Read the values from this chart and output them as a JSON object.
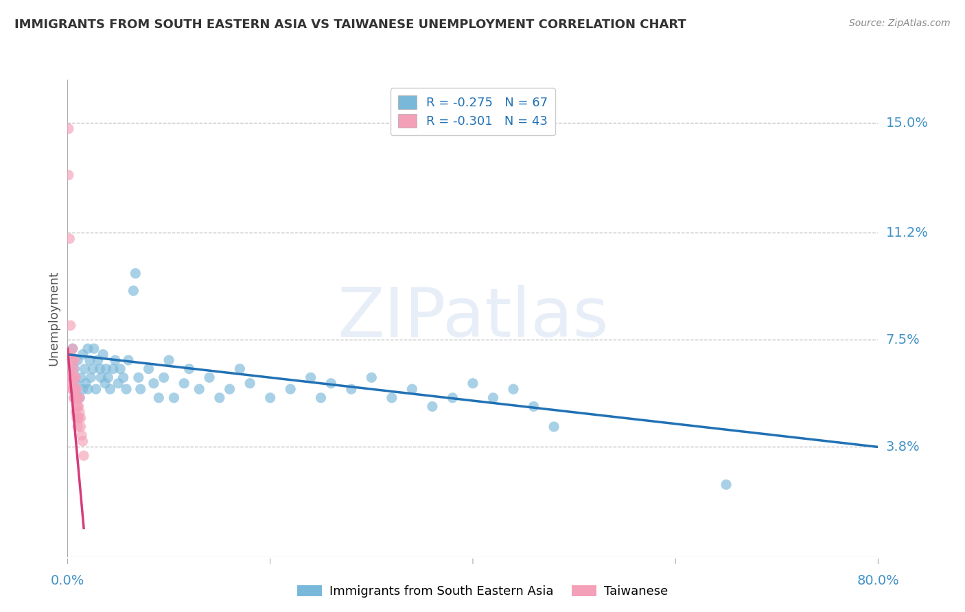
{
  "title": "IMMIGRANTS FROM SOUTH EASTERN ASIA VS TAIWANESE UNEMPLOYMENT CORRELATION CHART",
  "source": "Source: ZipAtlas.com",
  "ylabel": "Unemployment",
  "x_min": 0.0,
  "x_max": 0.8,
  "y_min": 0.0,
  "y_max": 0.165,
  "y_ticks": [
    0.038,
    0.075,
    0.112,
    0.15
  ],
  "y_tick_labels": [
    "3.8%",
    "7.5%",
    "11.2%",
    "15.0%"
  ],
  "x_tick_labels": [
    "0.0%",
    "80.0%"
  ],
  "legend_r1": "R = -0.275",
  "legend_n1": "N = 67",
  "legend_r2": "R = -0.301",
  "legend_n2": "N = 43",
  "legend_label1": "Immigrants from South Eastern Asia",
  "legend_label2": "Taiwanese",
  "blue_color": "#7ab8d9",
  "pink_color": "#f4a0b8",
  "blue_line_color": "#2171b5",
  "pink_line_color": "#d63b7a",
  "background_color": "#ffffff",
  "title_color": "#333333",
  "axis_label_color": "#555555",
  "tick_label_color": "#4292c6",
  "grid_color": "#bbbbbb",
  "blue_scatter": [
    [
      0.005,
      0.072
    ],
    [
      0.007,
      0.065
    ],
    [
      0.008,
      0.06
    ],
    [
      0.01,
      0.068
    ],
    [
      0.012,
      0.055
    ],
    [
      0.013,
      0.062
    ],
    [
      0.015,
      0.07
    ],
    [
      0.015,
      0.058
    ],
    [
      0.017,
      0.065
    ],
    [
      0.018,
      0.06
    ],
    [
      0.02,
      0.072
    ],
    [
      0.02,
      0.058
    ],
    [
      0.022,
      0.068
    ],
    [
      0.023,
      0.062
    ],
    [
      0.025,
      0.065
    ],
    [
      0.026,
      0.072
    ],
    [
      0.028,
      0.058
    ],
    [
      0.03,
      0.068
    ],
    [
      0.032,
      0.065
    ],
    [
      0.033,
      0.062
    ],
    [
      0.035,
      0.07
    ],
    [
      0.037,
      0.06
    ],
    [
      0.038,
      0.065
    ],
    [
      0.04,
      0.062
    ],
    [
      0.042,
      0.058
    ],
    [
      0.045,
      0.065
    ],
    [
      0.047,
      0.068
    ],
    [
      0.05,
      0.06
    ],
    [
      0.052,
      0.065
    ],
    [
      0.055,
      0.062
    ],
    [
      0.058,
      0.058
    ],
    [
      0.06,
      0.068
    ],
    [
      0.065,
      0.092
    ],
    [
      0.067,
      0.098
    ],
    [
      0.07,
      0.062
    ],
    [
      0.072,
      0.058
    ],
    [
      0.08,
      0.065
    ],
    [
      0.085,
      0.06
    ],
    [
      0.09,
      0.055
    ],
    [
      0.095,
      0.062
    ],
    [
      0.1,
      0.068
    ],
    [
      0.105,
      0.055
    ],
    [
      0.115,
      0.06
    ],
    [
      0.12,
      0.065
    ],
    [
      0.13,
      0.058
    ],
    [
      0.14,
      0.062
    ],
    [
      0.15,
      0.055
    ],
    [
      0.16,
      0.058
    ],
    [
      0.17,
      0.065
    ],
    [
      0.18,
      0.06
    ],
    [
      0.2,
      0.055
    ],
    [
      0.22,
      0.058
    ],
    [
      0.24,
      0.062
    ],
    [
      0.25,
      0.055
    ],
    [
      0.26,
      0.06
    ],
    [
      0.28,
      0.058
    ],
    [
      0.3,
      0.062
    ],
    [
      0.32,
      0.055
    ],
    [
      0.34,
      0.058
    ],
    [
      0.36,
      0.052
    ],
    [
      0.38,
      0.055
    ],
    [
      0.4,
      0.06
    ],
    [
      0.42,
      0.055
    ],
    [
      0.44,
      0.058
    ],
    [
      0.46,
      0.052
    ],
    [
      0.48,
      0.045
    ],
    [
      0.65,
      0.025
    ]
  ],
  "pink_scatter": [
    [
      0.001,
      0.148
    ],
    [
      0.001,
      0.132
    ],
    [
      0.002,
      0.11
    ],
    [
      0.003,
      0.08
    ],
    [
      0.003,
      0.07
    ],
    [
      0.003,
      0.068
    ],
    [
      0.004,
      0.065
    ],
    [
      0.004,
      0.062
    ],
    [
      0.004,
      0.06
    ],
    [
      0.004,
      0.058
    ],
    [
      0.005,
      0.072
    ],
    [
      0.005,
      0.068
    ],
    [
      0.005,
      0.062
    ],
    [
      0.005,
      0.058
    ],
    [
      0.006,
      0.065
    ],
    [
      0.006,
      0.06
    ],
    [
      0.006,
      0.058
    ],
    [
      0.006,
      0.055
    ],
    [
      0.007,
      0.068
    ],
    [
      0.007,
      0.062
    ],
    [
      0.007,
      0.058
    ],
    [
      0.007,
      0.055
    ],
    [
      0.008,
      0.062
    ],
    [
      0.008,
      0.058
    ],
    [
      0.008,
      0.055
    ],
    [
      0.008,
      0.05
    ],
    [
      0.009,
      0.058
    ],
    [
      0.009,
      0.055
    ],
    [
      0.009,
      0.052
    ],
    [
      0.009,
      0.048
    ],
    [
      0.01,
      0.055
    ],
    [
      0.01,
      0.052
    ],
    [
      0.01,
      0.048
    ],
    [
      0.01,
      0.045
    ],
    [
      0.011,
      0.052
    ],
    [
      0.011,
      0.048
    ],
    [
      0.012,
      0.055
    ],
    [
      0.012,
      0.05
    ],
    [
      0.013,
      0.048
    ],
    [
      0.013,
      0.045
    ],
    [
      0.014,
      0.042
    ],
    [
      0.015,
      0.04
    ],
    [
      0.016,
      0.035
    ]
  ],
  "blue_line_x": [
    0.0,
    0.8
  ],
  "blue_line_y": [
    0.07,
    0.038
  ],
  "pink_line_x": [
    0.0,
    0.016
  ],
  "pink_line_y": [
    0.072,
    0.01
  ]
}
